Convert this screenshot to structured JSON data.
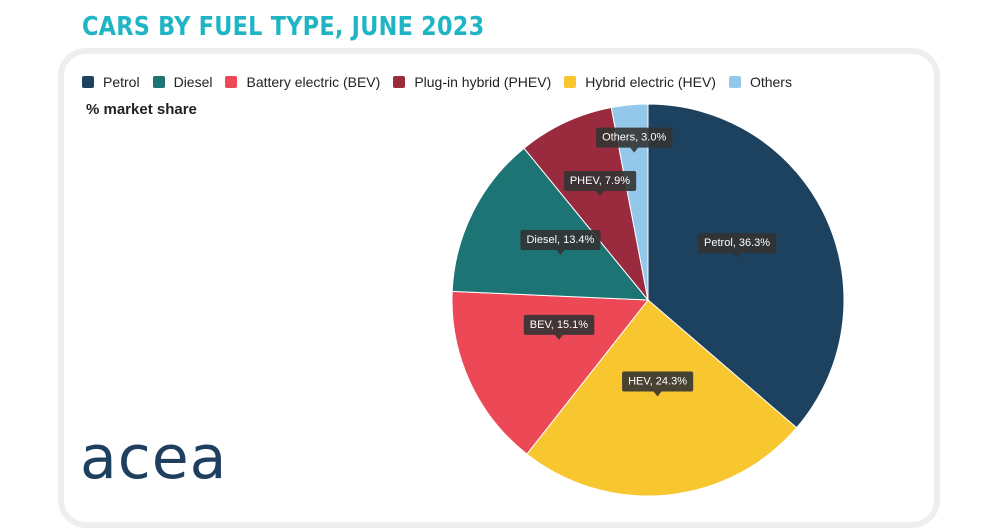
{
  "title": "CARS BY FUEL TYPE, JUNE 2023",
  "unit_label": "% market share",
  "logo_text": "acea",
  "legend": [
    {
      "label": "Petrol",
      "color": "#1d4260"
    },
    {
      "label": "Diesel",
      "color": "#1c7574"
    },
    {
      "label": "Battery electric (BEV)",
      "color": "#ec4856"
    },
    {
      "label": "Plug-in hybrid (PHEV)",
      "color": "#9a2b3f"
    },
    {
      "label": "Hybrid electric (HEV)",
      "color": "#f8c62f"
    },
    {
      "label": "Others",
      "color": "#93c8ea"
    }
  ],
  "chart_data": {
    "type": "pie",
    "title": "CARS BY FUEL TYPE, JUNE 2023",
    "legend_position": "top",
    "slices": [
      {
        "name": "Petrol",
        "label": "Petrol, 36.3%",
        "value": 36.3,
        "color": "#1d4260"
      },
      {
        "name": "Hybrid electric (HEV)",
        "label": "HEV, 24.3%",
        "value": 24.3,
        "color": "#f8c62f"
      },
      {
        "name": "Battery electric (BEV)",
        "label": "BEV, 15.1%",
        "value": 15.1,
        "color": "#ec4856"
      },
      {
        "name": "Diesel",
        "label": "Diesel, 13.4%",
        "value": 13.4,
        "color": "#1c7574"
      },
      {
        "name": "Plug-in hybrid (PHEV)",
        "label": "PHEV, 7.9%",
        "value": 7.9,
        "color": "#9a2b3f"
      },
      {
        "name": "Others",
        "label": "Others, 3.0%",
        "value": 3.0,
        "color": "#93c8ea"
      }
    ]
  }
}
